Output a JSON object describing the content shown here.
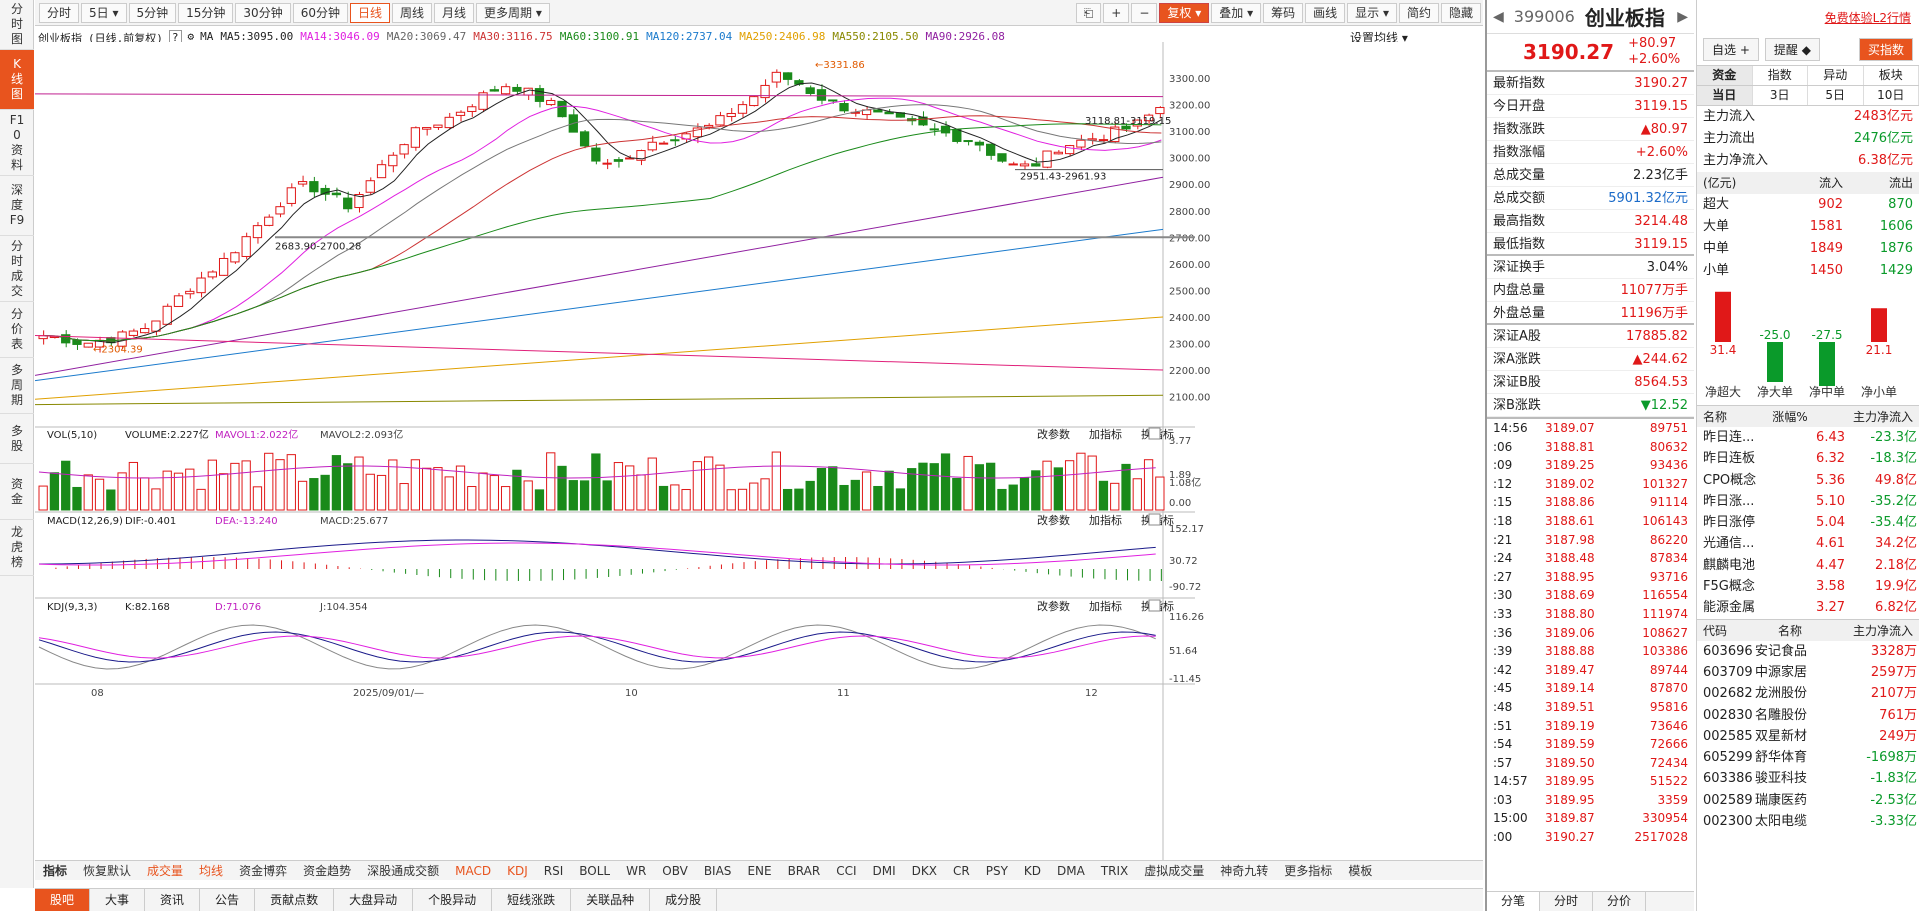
{
  "left_sidebar": [
    "分时图",
    "K线图",
    "F10资料",
    "深度F9",
    "分时成交",
    "分价表",
    "多周期",
    "多股",
    "资金",
    "龙虎榜"
  ],
  "toolbar": {
    "periods": [
      "分时",
      "5日 ▾",
      "5分钟",
      "15分钟",
      "30分钟",
      "60分钟",
      "日线",
      "周线",
      "月线",
      "更多周期 ▾"
    ],
    "active": "日线",
    "right": [
      "复权 ▾",
      "叠加 ▾",
      "筹码",
      "画线",
      "显示 ▾",
      "简约",
      "隐藏"
    ]
  },
  "main_overlay": {
    "name": "创业板指",
    "mode": "(日线,前复权)",
    "settings": "设置均线 ▾",
    "ma": [
      {
        "t": "MA",
        "c": "#222"
      },
      {
        "t": "MA5:3095.00",
        "c": "#222"
      },
      {
        "t": "MA14:3046.09",
        "c": "#e020e0"
      },
      {
        "t": "MA20:3069.47",
        "c": "#666"
      },
      {
        "t": "MA30:3116.75",
        "c": "#cc3333"
      },
      {
        "t": "MA60:3100.91",
        "c": "#1a8a1a"
      },
      {
        "t": "MA120:2737.04",
        "c": "#1a7acc"
      },
      {
        "t": "MA250:2406.98",
        "c": "#e0a000"
      },
      {
        "t": "MA550:2105.50",
        "c": "#888800"
      },
      {
        "t": "MA90:2926.08",
        "c": "#9020a0"
      }
    ]
  },
  "y_labels": [
    "3300.00",
    "3200.00",
    "3100.00",
    "3000.00",
    "2900.00",
    "2800.00",
    "2700.00",
    "2600.00",
    "2500.00",
    "2400.00",
    "2300.00",
    "2200.00",
    "2100.00"
  ],
  "annotations": {
    "high": "3331.86",
    "low": "2304.39",
    "a1": "2683.90-2700.28",
    "a2": "2951.43-2961.93",
    "a3": "3118.81-3119.15"
  },
  "vol": {
    "label": "VOL(5,10)",
    "v1": "VOLUME:2.227亿",
    "v2": "MAVOL1:2.022亿",
    "v3": "MAVOL2:2.093亿",
    "y": [
      "3.77",
      "1.89",
      "1.08亿",
      "0.00"
    ]
  },
  "macd": {
    "label": "MACD(12,26,9)",
    "v1": "DIF:-0.401",
    "v2": "DEA:-13.240",
    "v3": "MACD:25.677",
    "y": [
      "152.17",
      "30.72",
      "-90.72"
    ]
  },
  "kdj": {
    "label": "KDJ(9,3,3)",
    "v1": "K:82.168",
    "v2": "D:71.076",
    "v3": "J:104.354",
    "y": [
      "116.26",
      "51.64",
      "-11.45"
    ]
  },
  "panel_tools": [
    "改参数",
    "加指标",
    "换指标"
  ],
  "x_labels": [
    "08",
    "2025/09/01/—",
    "10",
    "11",
    "12"
  ],
  "indicators": [
    "指标",
    "恢复默认",
    "成交量",
    "均线",
    "资金博弈",
    "资金趋势",
    "深股通成交额",
    "MACD",
    "KDJ",
    "RSI",
    "BOLL",
    "WR",
    "OBV",
    "BIAS",
    "ENE",
    "BRAR",
    "CCI",
    "DMI",
    "DKX",
    "CR",
    "PSY",
    "KD",
    "DMA",
    "TRIX",
    "虚拟成交量",
    "神奇九转",
    "更多指标",
    "模板"
  ],
  "bottom_nav": [
    "股吧",
    "大事",
    "资讯",
    "公告",
    "贡献点数",
    "大盘异动",
    "个股异动",
    "短线涨跌",
    "关联品种",
    "成分股"
  ],
  "quote": {
    "code": "399006",
    "name": "创业板指",
    "price": "3190.27",
    "chg": "+80.97",
    "pct": "+2.60%",
    "rows": [
      [
        "最新指数",
        "3190.27",
        "red"
      ],
      [
        "今日开盘",
        "3119.15",
        "red"
      ],
      [
        "指数涨跌",
        "▲80.97",
        "red"
      ],
      [
        "指数涨幅",
        "+2.60%",
        "red"
      ],
      [
        "总成交量",
        "2.23亿手",
        "black"
      ],
      [
        "总成交额",
        "5901.32亿元",
        "blu"
      ],
      [
        "最高指数",
        "3214.48",
        "red"
      ],
      [
        "最低指数",
        "3119.15",
        "red"
      ],
      [
        "深证换手",
        "3.04%",
        "black"
      ],
      [
        "内盘总量",
        "11077万手",
        "red"
      ],
      [
        "外盘总量",
        "11196万手",
        "red"
      ],
      [
        "深证A股",
        "17885.82",
        "red"
      ],
      [
        "深A涨跌",
        "▲244.62",
        "red"
      ],
      [
        "深证B股",
        "8564.53",
        "red"
      ],
      [
        "深B涨跌",
        "▼12.52",
        "grn"
      ]
    ]
  },
  "ticks": [
    [
      "14:56",
      "3189.07",
      "89751"
    ],
    [
      ":06",
      "3188.81",
      "80632"
    ],
    [
      ":09",
      "3189.25",
      "93436"
    ],
    [
      ":12",
      "3189.02",
      "101327"
    ],
    [
      ":15",
      "3188.86",
      "91114"
    ],
    [
      ":18",
      "3188.61",
      "106143"
    ],
    [
      ":21",
      "3187.98",
      "86220"
    ],
    [
      ":24",
      "3188.48",
      "87834"
    ],
    [
      ":27",
      "3188.95",
      "93716"
    ],
    [
      ":30",
      "3188.69",
      "116554"
    ],
    [
      ":33",
      "3188.80",
      "111974"
    ],
    [
      ":36",
      "3189.06",
      "108627"
    ],
    [
      ":39",
      "3188.88",
      "103386"
    ],
    [
      ":42",
      "3189.47",
      "89744"
    ],
    [
      ":45",
      "3189.14",
      "87870"
    ],
    [
      ":48",
      "3189.51",
      "95816"
    ],
    [
      ":51",
      "3189.19",
      "73646"
    ],
    [
      ":54",
      "3189.59",
      "72666"
    ],
    [
      ":57",
      "3189.50",
      "72434"
    ],
    [
      "14:57",
      "3189.95",
      "51522"
    ],
    [
      ":03",
      "3189.95",
      "3359"
    ],
    [
      "15:00",
      "3189.87",
      "330954"
    ],
    [
      ":00",
      "3190.27",
      "2517028"
    ]
  ],
  "rp_tabs": [
    "分笔",
    "分时",
    "分价"
  ],
  "fund": {
    "free": "免费体验L2行情",
    "btns": [
      "自选 +",
      "提醒 ◆",
      "买指数"
    ],
    "tabs1": [
      "资金",
      "指数",
      "异动",
      "板块"
    ],
    "tabs2": [
      "当日",
      "3日",
      "5日",
      "10日"
    ],
    "main": [
      [
        "主力流入",
        "2483亿元",
        "red"
      ],
      [
        "主力流出",
        "2476亿元",
        "grn"
      ],
      [
        "主力净流入",
        "6.38亿元",
        "red"
      ]
    ],
    "hdr": [
      "(亿元)",
      "流入",
      "流出"
    ],
    "orders": [
      [
        "超大",
        "902",
        "870"
      ],
      [
        "大单",
        "1581",
        "1606"
      ],
      [
        "中单",
        "1849",
        "1876"
      ],
      [
        "小单",
        "1450",
        "1429"
      ]
    ],
    "bars": [
      {
        "l": "净超大",
        "v": 31.4
      },
      {
        "l": "净大单",
        "v": -25.0
      },
      {
        "l": "净中单",
        "v": -27.5
      },
      {
        "l": "净小单",
        "v": 21.1
      }
    ],
    "s1hdr": [
      "名称",
      "涨幅%",
      "主力净流入"
    ],
    "sectors": [
      [
        "昨日连...",
        "6.43",
        "-23.3亿"
      ],
      [
        "昨日连板",
        "6.32",
        "-18.3亿"
      ],
      [
        "CPO概念",
        "5.36",
        "49.8亿"
      ],
      [
        "昨日涨...",
        "5.10",
        "-35.2亿"
      ],
      [
        "昨日涨停",
        "5.04",
        "-35.4亿"
      ],
      [
        "光通信...",
        "4.61",
        "34.2亿"
      ],
      [
        "麒麟电池",
        "4.47",
        "2.18亿"
      ],
      [
        "F5G概念",
        "3.58",
        "19.9亿"
      ],
      [
        "能源金属",
        "3.27",
        "6.82亿"
      ]
    ],
    "s2hdr": [
      "代码",
      "名称",
      "主力净流入"
    ],
    "stocks": [
      [
        "603696",
        "安记食品",
        "3328万"
      ],
      [
        "603709",
        "中源家居",
        "2597万"
      ],
      [
        "002682",
        "龙洲股份",
        "2107万"
      ],
      [
        "002830",
        "名雕股份",
        "761万"
      ],
      [
        "002585",
        "双星新材",
        "249万"
      ],
      [
        "605299",
        "舒华体育",
        "-1698万"
      ],
      [
        "603386",
        "骏亚科技",
        "-1.83亿"
      ],
      [
        "002589",
        "瑞康医药",
        "-2.53亿"
      ],
      [
        "002300",
        "太阳电缆",
        "-3.33亿"
      ]
    ]
  },
  "chart_data": {
    "type": "candlestick",
    "series": "创业板指 日线",
    "ylim": [
      2100,
      3300
    ],
    "high": 3331.86,
    "low": 2304.39,
    "last_close": 3190.27
  }
}
